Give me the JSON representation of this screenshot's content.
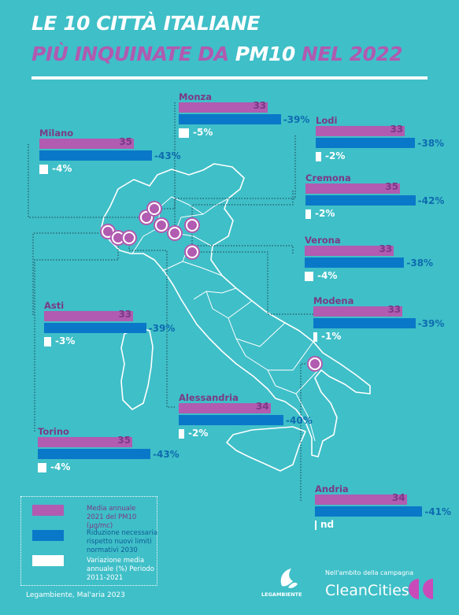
{
  "title": {
    "line1": "LE 10 CITTÀ ITALIANE",
    "line2_a": "PIÙ INQUINATE DA ",
    "line2_b": "PM10",
    "line2_c": " NEL 2022"
  },
  "chart_data": {
    "type": "bar",
    "series": [
      {
        "name": "Media annuale 2021 del PM10 (µg/mc)",
        "color": "#b15bb1"
      },
      {
        "name": "Riduzione necessaria rispetto nuovi limiti normativi 2030",
        "color": "#0a78c8"
      },
      {
        "name": "Variazione media annuale (%) Periodo 2011-2021",
        "color": "#ffffff"
      }
    ],
    "categories": [
      "Milano",
      "Monza",
      "Lodi",
      "Cremona",
      "Verona",
      "Asti",
      "Modena",
      "Alessandria",
      "Torino",
      "Andria"
    ],
    "cities": [
      {
        "name": "Milano",
        "pm10": 35,
        "pm10_label": "35",
        "reduction": -43,
        "reduction_label": "-43%",
        "variation": -4,
        "variation_label": "-4%"
      },
      {
        "name": "Monza",
        "pm10": 33,
        "pm10_label": "33",
        "reduction": -39,
        "reduction_label": "-39%",
        "variation": -5,
        "variation_label": "-5%"
      },
      {
        "name": "Lodi",
        "pm10": 33,
        "pm10_label": "33",
        "reduction": -38,
        "reduction_label": "-38%",
        "variation": -2,
        "variation_label": "-2%"
      },
      {
        "name": "Cremona",
        "pm10": 35,
        "pm10_label": "35",
        "reduction": -42,
        "reduction_label": "-42%",
        "variation": -2,
        "variation_label": "-2%"
      },
      {
        "name": "Verona",
        "pm10": 33,
        "pm10_label": "33",
        "reduction": -38,
        "reduction_label": "-38%",
        "variation": -4,
        "variation_label": "-4%"
      },
      {
        "name": "Asti",
        "pm10": 33,
        "pm10_label": "33",
        "reduction": -39,
        "reduction_label": "-39%",
        "variation": -3,
        "variation_label": "-3%"
      },
      {
        "name": "Modena",
        "pm10": 33,
        "pm10_label": "33",
        "reduction": -39,
        "reduction_label": "-39%",
        "variation": -1,
        "variation_label": "-1%"
      },
      {
        "name": "Alessandria",
        "pm10": 34,
        "pm10_label": "34",
        "reduction": -40,
        "reduction_label": "-40%",
        "variation": -2,
        "variation_label": "-2%"
      },
      {
        "name": "Torino",
        "pm10": 35,
        "pm10_label": "35",
        "reduction": -43,
        "reduction_label": "-43%",
        "variation": -4,
        "variation_label": "-4%"
      },
      {
        "name": "Andria",
        "pm10": 34,
        "pm10_label": "34",
        "reduction": -41,
        "reduction_label": "-41%",
        "variation": null,
        "variation_label": "nd"
      }
    ]
  },
  "legend": {
    "pm10": "Media annuale 2021 del PM10 (µg/mc)",
    "reduction": "Riduzione necessaria rispetto nuovi limiti normativi 2030",
    "variation": "Variazione media annuale (%) Periodo 2011-2021"
  },
  "footer": {
    "source": "Legambiente, Mal'aria 2023",
    "logo_text": "LEGAMBIENTE",
    "campaign": "Nell'ambito della campagna",
    "brand": "CleanCities"
  },
  "colors": {
    "background": "#3fbfc8",
    "pm10": "#b15bb1",
    "reduction": "#0a78c8",
    "variation": "#ffffff",
    "text_purple": "#7a3a86"
  }
}
